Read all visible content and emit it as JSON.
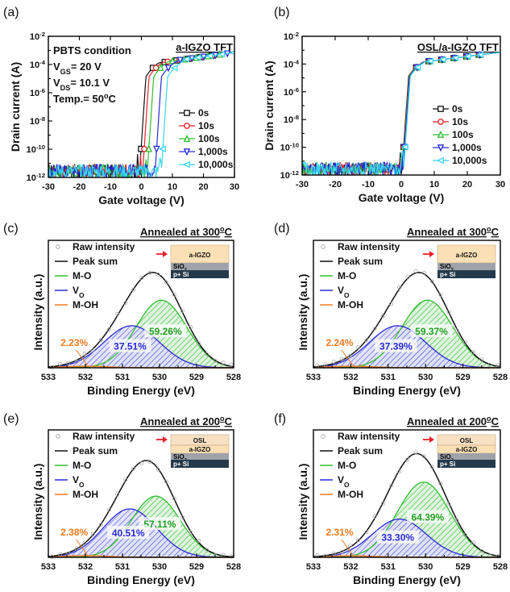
{
  "chart_data": [
    {
      "type": "line",
      "panel": "(a)",
      "title": "a-IGZO TFT",
      "xlabel": "Gate voltage (V)",
      "ylabel": "Drain current  (A)",
      "xlim": [
        -30,
        30
      ],
      "ylim_exp": [
        -12,
        -2
      ],
      "xticks": [
        "-30",
        "-20",
        "-10",
        "0",
        "10",
        "20",
        "30"
      ],
      "yticks": [
        {
          "base": "10",
          "exp": "-2"
        },
        {
          "base": "10",
          "exp": "-4"
        },
        {
          "base": "10",
          "exp": "-6"
        },
        {
          "base": "10",
          "exp": "-8"
        },
        {
          "base": "10",
          "exp": "-10"
        },
        {
          "base": "10",
          "exp": "-12"
        }
      ],
      "conditions": [
        {
          "main": "PBTS condition"
        },
        {
          "main": "V",
          "sub": "GS",
          "rest": "= 20 V"
        },
        {
          "main": "V",
          "sub": "DS",
          "rest": "= 10.1 V"
        },
        {
          "main": "Temp.= 50",
          "sup": "o",
          "rest": "C"
        }
      ],
      "series": [
        {
          "name": "0s",
          "color": "#111111",
          "marker": "square",
          "von": -0.5
        },
        {
          "name": "10s",
          "color": "#e8202a",
          "marker": "circle",
          "von": 0.5
        },
        {
          "name": "100s",
          "color": "#2fbf2f",
          "marker": "triangle",
          "von": 2.0
        },
        {
          "name": "1,000s",
          "color": "#2a2ad6",
          "marker": "triangle-down",
          "von": 4.5
        },
        {
          "name": "10,000s",
          "color": "#38d6ef",
          "marker": "triangle-left",
          "von": 6.5
        }
      ]
    },
    {
      "type": "line",
      "panel": "(b)",
      "title": "OSL/a-IGZO TFT",
      "xlabel": "Gate voltage (V)",
      "ylabel": "Drain current  (A)",
      "xlim": [
        -30,
        30
      ],
      "ylim_exp": [
        -12,
        -2
      ],
      "xticks": [
        "-30",
        "-20",
        "-10",
        "0",
        "10",
        "20",
        "30"
      ],
      "yticks": [
        {
          "base": "10",
          "exp": "-2"
        },
        {
          "base": "10",
          "exp": "-4"
        },
        {
          "base": "10",
          "exp": "-6"
        },
        {
          "base": "10",
          "exp": "-8"
        },
        {
          "base": "10",
          "exp": "-10"
        },
        {
          "base": "10",
          "exp": "-12"
        }
      ],
      "conditions": [],
      "series": [
        {
          "name": "0s",
          "color": "#111111",
          "marker": "square",
          "von": 0.3
        },
        {
          "name": "10s",
          "color": "#e8202a",
          "marker": "circle",
          "von": 0.4
        },
        {
          "name": "100s",
          "color": "#2fbf2f",
          "marker": "triangle",
          "von": 0.5
        },
        {
          "name": "1,000s",
          "color": "#2a2ad6",
          "marker": "triangle-down",
          "von": 0.6
        },
        {
          "name": "10,000s",
          "color": "#38d6ef",
          "marker": "triangle-left",
          "von": 0.8
        }
      ]
    },
    {
      "type": "area",
      "panel": "(c)",
      "title": "Annealed at 300",
      "title_sup": "o",
      "title_rest": "C",
      "xlabel": "Binding Energy (eV)",
      "ylabel": "Intensity (a.u.)",
      "xlim": [
        533,
        528
      ],
      "xticks": [
        "533",
        "532",
        "531",
        "530",
        "529",
        "528"
      ],
      "legend": {
        "raw": "Raw intensity",
        "sum": "Peak sum",
        "mo": "M-O",
        "vo_main": "V",
        "vo_sub": "O",
        "moh": "M-OH"
      },
      "peaks": {
        "mo": {
          "center": 529.95,
          "amp": 0.53,
          "sigma": 0.68,
          "label": "59.26%"
        },
        "vo": {
          "center": 530.75,
          "amp": 0.33,
          "sigma": 0.75,
          "label": "37.51%"
        },
        "moh": {
          "center": 532.0,
          "amp": 0.012,
          "sigma": 0.6,
          "label": "2.23%"
        }
      },
      "stack": [
        "a-IGZO",
        "SiO",
        "2",
        "p+ Si"
      ],
      "has_osl": false
    },
    {
      "type": "area",
      "panel": "(d)",
      "title": "Annealed at 300",
      "title_sup": "o",
      "title_rest": "C",
      "xlabel": "Binding Energy (eV)",
      "ylabel": "Intensity (a.u.)",
      "xlim": [
        533,
        528
      ],
      "xticks": [
        "533",
        "532",
        "531",
        "530",
        "529",
        "528"
      ],
      "legend": {
        "raw": "Raw intensity",
        "sum": "Peak sum",
        "mo": "M-O",
        "vo_main": "V",
        "vo_sub": "O",
        "moh": "M-OH"
      },
      "peaks": {
        "mo": {
          "center": 529.95,
          "amp": 0.53,
          "sigma": 0.68,
          "label": "59.37%"
        },
        "vo": {
          "center": 530.75,
          "amp": 0.33,
          "sigma": 0.75,
          "label": "37.39%"
        },
        "moh": {
          "center": 532.0,
          "amp": 0.012,
          "sigma": 0.6,
          "label": "2.24%"
        }
      },
      "stack": [
        "a-IGZO",
        "SiO",
        "2",
        "p+ Si"
      ],
      "has_osl": false
    },
    {
      "type": "area",
      "panel": "(e)",
      "title": "Annealed at 200",
      "title_sup": "o",
      "title_rest": "C",
      "xlabel": "Binding Energy (eV)",
      "ylabel": "Intensity (a.u.)",
      "xlim": [
        533,
        528
      ],
      "xticks": [
        "533",
        "532",
        "531",
        "530",
        "529",
        "528"
      ],
      "legend": {
        "raw": "Raw intensity",
        "sum": "Peak sum",
        "mo": "M-O",
        "vo_main": "V",
        "vo_sub": "O",
        "moh": "M-OH"
      },
      "peaks": {
        "mo": {
          "center": 530.1,
          "amp": 0.48,
          "sigma": 0.66,
          "label": "57.11%"
        },
        "vo": {
          "center": 530.8,
          "amp": 0.38,
          "sigma": 0.72,
          "label": "40.51%"
        },
        "moh": {
          "center": 532.0,
          "amp": 0.013,
          "sigma": 0.6,
          "label": "2.38%"
        }
      },
      "stack": [
        "OSL",
        "a-IGZO",
        "SiO",
        "2",
        "p+ Si"
      ],
      "has_osl": true
    },
    {
      "type": "area",
      "panel": "(f)",
      "title": "Annealed at 200",
      "title_sup": "o",
      "title_rest": "C",
      "xlabel": "Binding Energy (eV)",
      "ylabel": "Intensity (a.u.)",
      "xlim": [
        533,
        528
      ],
      "xticks": [
        "533",
        "532",
        "531",
        "530",
        "529",
        "528"
      ],
      "legend": {
        "raw": "Raw intensity",
        "sum": "Peak sum",
        "mo": "M-O",
        "vo_main": "V",
        "vo_sub": "O",
        "moh": "M-OH"
      },
      "peaks": {
        "mo": {
          "center": 530.05,
          "amp": 0.59,
          "sigma": 0.7,
          "label": "64.39%"
        },
        "vo": {
          "center": 530.7,
          "amp": 0.3,
          "sigma": 0.72,
          "label": "33.30%"
        },
        "moh": {
          "center": 532.0,
          "amp": 0.012,
          "sigma": 0.6,
          "label": "2.31%"
        }
      },
      "stack": [
        "OSL",
        "a-IGZO",
        "SiO",
        "2",
        "p+ Si"
      ],
      "has_osl": true
    }
  ],
  "colors": {
    "mo_line": "#2fbf2f",
    "mo_fill": "#2fbf2f",
    "vo_line": "#2a2ad6",
    "vo_fill": "#4a4ae0",
    "moh": "#f07a1e",
    "sum": "#111111",
    "arrow": "#e8202a",
    "osl": "#f7e1c4",
    "igzo": "#fbe0b5",
    "sio2": "#9fa3a9",
    "psi": "#243a4c",
    "mo_label": "#20a020",
    "vo_label": "#2a2ad6",
    "moh_label": "#f07a1e"
  }
}
